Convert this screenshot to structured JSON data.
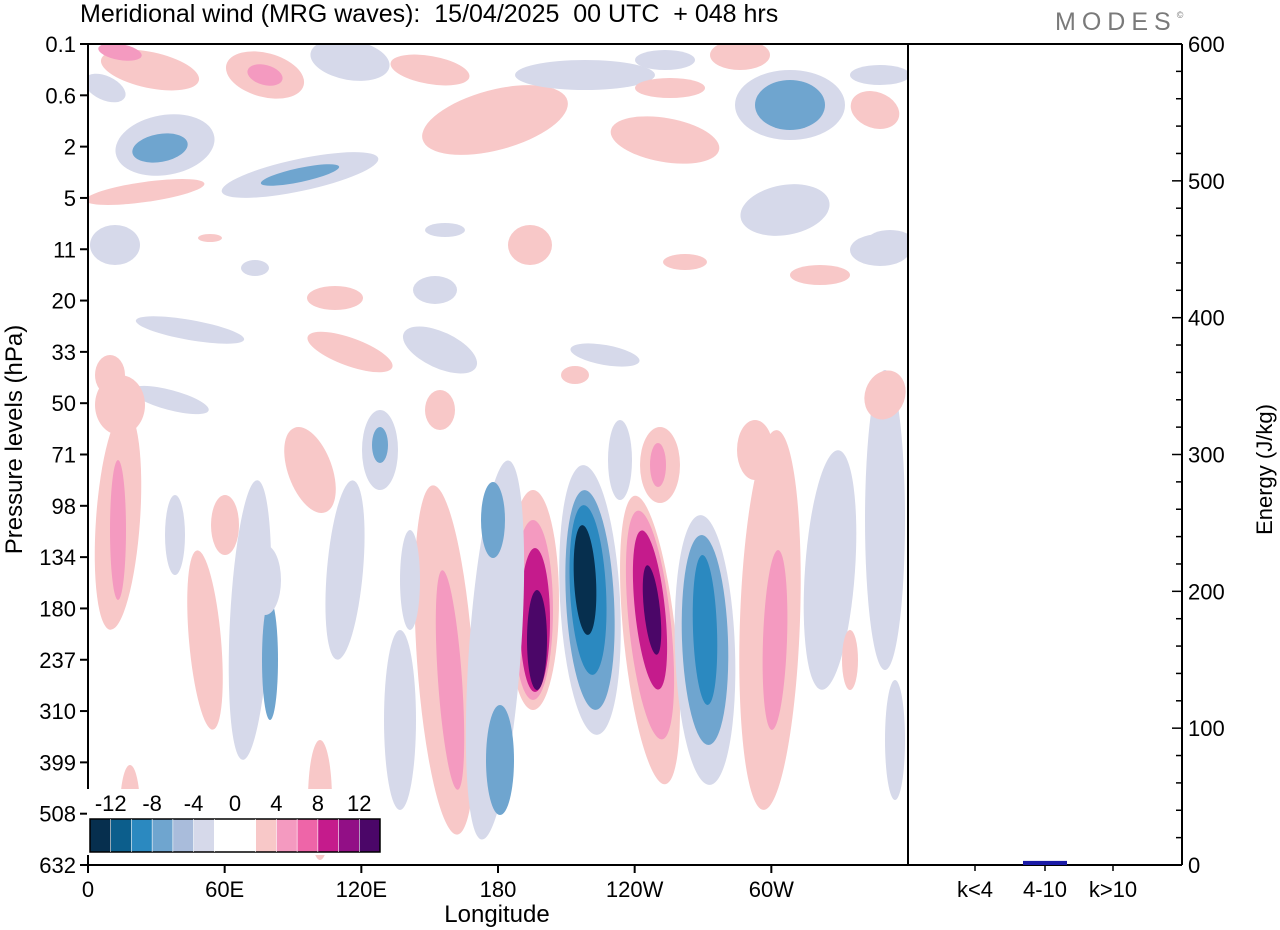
{
  "header": {
    "title": "Meridional wind (MRG waves):  15/04/2025  00 UTC  + 048 hrs",
    "logo": "MODES"
  },
  "colors": {
    "levels": [
      "#062f4e",
      "#0c5e8c",
      "#2b89c0",
      "#6fa5cf",
      "#a9bcdb",
      "#d6d9ea",
      "#ffffff",
      "#ffffff",
      "#f8c8c8",
      "#f49ac0",
      "#ee65a8",
      "#c51b8c",
      "#920f86",
      "#4b0668"
    ]
  },
  "chart_data": [
    {
      "type": "heatmap",
      "title": "Meridional wind (MRG waves):  15/04/2025  00 UTC  + 048 hrs",
      "xlabel": "Longitude",
      "ylabel": "Pressure levels (hPa)",
      "x_ticks": [
        "0",
        "60E",
        "120E",
        "180",
        "120W",
        "60W"
      ],
      "y_ticks": [
        "0.1",
        "0.6",
        "2",
        "5",
        "11",
        "20",
        "33",
        "50",
        "71",
        "98",
        "134",
        "180",
        "237",
        "310",
        "399",
        "508",
        "632"
      ],
      "colorbar": {
        "labels": [
          "-12",
          "-8",
          "-4",
          "0",
          "4",
          "8",
          "12"
        ],
        "levels": [
          -14,
          -12,
          -10,
          -8,
          -6,
          -4,
          -2,
          0,
          2,
          4,
          6,
          8,
          10,
          12,
          14
        ]
      }
    },
    {
      "type": "bar",
      "ylabel": "Energy (J/kg)",
      "ylim": [
        0,
        600
      ],
      "y_ticks": [
        "0",
        "100",
        "200",
        "300",
        "400",
        "500",
        "600"
      ],
      "categories": [
        "k<4",
        "4-10",
        "k>10"
      ],
      "values": [
        0,
        3,
        0
      ],
      "bar_color": "#1a1aa6"
    }
  ]
}
